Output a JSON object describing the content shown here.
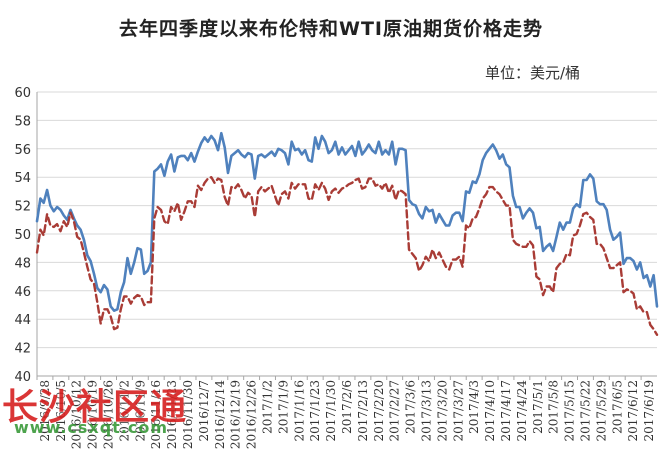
{
  "chart_data": {
    "type": "line",
    "title": "去年四季度以来布伦特和WTI原油期货价格走势",
    "unit": "单位：美元/桶",
    "ylim": [
      40,
      60
    ],
    "yticks": [
      40,
      42,
      44,
      46,
      48,
      50,
      52,
      54,
      56,
      58,
      60
    ],
    "grid": true,
    "legend": "none",
    "x_ticks": [
      "2016/9/28",
      "2016/10/5",
      "2016/10/12",
      "2016/10/19",
      "2016/10/26",
      "2016/11/2",
      "2016/11/9",
      "2016/11/16",
      "2016/11/23",
      "2016/11/30",
      "2016/12/7",
      "2016/12/14",
      "2016/12/19",
      "2016/12/26",
      "2017/1/2",
      "2017/1/9",
      "2017/1/16",
      "2017/1/23",
      "2017/1/30",
      "2017/2/6",
      "2017/2/13",
      "2017/2/20",
      "2017/2/27",
      "2017/3/6",
      "2017/3/13",
      "2017/3/20",
      "2017/3/27",
      "2017/4/3",
      "2017/4/10",
      "2017/4/17",
      "2017/4/24",
      "2017/5/1",
      "2017/5/8",
      "2017/5/15",
      "2017/5/22",
      "2017/5/29",
      "2017/6/5",
      "2017/6/12",
      "2017/6/19"
    ],
    "series": [
      {
        "color": "#4f81bd",
        "style": "solid",
        "values": [
          50.9,
          52.5,
          52.2,
          53.1,
          52.0,
          51.6,
          51.9,
          51.7,
          51.3,
          51.0,
          51.7,
          51.1,
          50.6,
          50.3,
          49.6,
          48.5,
          48.1,
          47.2,
          46.2,
          45.9,
          46.4,
          46.1,
          44.9,
          44.6,
          44.7,
          45.9,
          46.6,
          48.3,
          47.2,
          48.0,
          49.0,
          48.9,
          47.2,
          47.4,
          48.0,
          54.4,
          54.6,
          54.9,
          54.1,
          55.1,
          55.6,
          54.4,
          55.4,
          55.5,
          55.5,
          55.2,
          55.7,
          55.1,
          55.8,
          56.4,
          56.8,
          56.5,
          56.9,
          56.6,
          55.9,
          57.1,
          56.1,
          54.3,
          55.5,
          55.7,
          55.9,
          55.6,
          55.4,
          55.7,
          55.6,
          53.9,
          55.5,
          55.6,
          55.4,
          55.6,
          55.8,
          55.5,
          56.0,
          55.9,
          55.7,
          54.9,
          56.5,
          55.9,
          56.0,
          55.6,
          55.9,
          55.2,
          55.1,
          56.8,
          56.0,
          56.9,
          56.5,
          55.7,
          55.9,
          56.5,
          55.6,
          56.1,
          55.6,
          55.9,
          56.2,
          55.5,
          56.5,
          55.6,
          55.9,
          56.3,
          55.9,
          55.7,
          56.5,
          55.6,
          55.9,
          55.6,
          56.5,
          54.9,
          56.0,
          56.0,
          55.9,
          52.4,
          52.1,
          52.0,
          51.4,
          51.1,
          51.9,
          51.6,
          51.7,
          50.8,
          51.4,
          51.0,
          50.6,
          50.6,
          51.3,
          51.5,
          51.5,
          50.9,
          53.0,
          52.9,
          53.7,
          53.6,
          54.2,
          55.2,
          55.7,
          56.0,
          56.3,
          55.9,
          55.3,
          55.6,
          54.9,
          54.7,
          52.7,
          51.9,
          51.9,
          51.1,
          51.5,
          51.8,
          51.5,
          50.4,
          50.5,
          48.8,
          49.1,
          49.3,
          48.8,
          49.8,
          50.8,
          50.3,
          50.8,
          50.8,
          51.8,
          52.1,
          51.9,
          53.8,
          53.8,
          54.2,
          53.9,
          52.3,
          52.1,
          52.1,
          51.7,
          50.3,
          49.6,
          49.8,
          50.1,
          47.9,
          48.3,
          48.3,
          48.1,
          47.5,
          48.0,
          46.9,
          47.1,
          46.3,
          47.1,
          44.9
        ]
      },
      {
        "color": "#a93c36",
        "style": "dashed",
        "values": [
          48.7,
          50.3,
          49.9,
          51.4,
          50.6,
          50.5,
          50.7,
          50.2,
          50.9,
          50.5,
          51.5,
          50.9,
          49.8,
          49.6,
          48.7,
          47.7,
          46.8,
          46.5,
          45.2,
          43.7,
          44.7,
          44.7,
          44.2,
          43.3,
          43.4,
          44.7,
          45.6,
          45.6,
          45.1,
          45.5,
          45.7,
          45.6,
          45.0,
          45.2,
          45.2,
          51.1,
          51.9,
          51.7,
          50.9,
          50.7,
          51.9,
          51.6,
          52.2,
          51.0,
          51.6,
          52.3,
          52.3,
          51.9,
          53.4,
          53.1,
          53.6,
          53.9,
          54.0,
          53.6,
          53.9,
          53.8,
          52.6,
          52.0,
          53.3,
          53.2,
          53.5,
          53.1,
          52.5,
          52.9,
          52.7,
          51.2,
          53.0,
          53.3,
          53.0,
          53.2,
          53.4,
          52.7,
          52.0,
          52.8,
          53.0,
          52.5,
          53.6,
          53.2,
          53.5,
          53.5,
          53.5,
          52.5,
          52.4,
          53.5,
          53.1,
          53.6,
          53.2,
          52.4,
          53.0,
          53.2,
          52.9,
          53.2,
          53.3,
          53.5,
          53.6,
          53.8,
          53.9,
          53.2,
          53.3,
          53.9,
          53.9,
          53.4,
          53.5,
          53.2,
          53.6,
          52.9,
          53.4,
          52.4,
          53.1,
          53.0,
          52.8,
          48.9,
          48.6,
          48.3,
          47.4,
          47.8,
          48.4,
          48.1,
          48.9,
          48.3,
          48.7,
          48.2,
          47.7,
          47.5,
          48.2,
          48.2,
          48.4,
          47.7,
          50.6,
          50.4,
          51.1,
          51.2,
          51.8,
          52.5,
          52.8,
          53.3,
          53.3,
          53.0,
          52.8,
          52.4,
          52.0,
          52.0,
          49.6,
          49.3,
          49.2,
          49.1,
          49.1,
          49.5,
          49.2,
          47.0,
          46.8,
          45.7,
          46.3,
          46.3,
          45.9,
          47.6,
          47.9,
          48.0,
          48.6,
          48.5,
          49.9,
          50.0,
          50.6,
          51.4,
          51.5,
          51.2,
          51.0,
          49.3,
          49.3,
          49.0,
          48.3,
          47.6,
          47.6,
          47.8,
          48.0,
          45.9,
          46.1,
          46.0,
          45.8,
          44.7,
          44.9,
          44.5,
          44.5,
          43.6,
          43.3,
          42.9
        ]
      }
    ]
  },
  "watermark": {
    "main": "长沙社区通",
    "url": "www.csxqt.com"
  }
}
